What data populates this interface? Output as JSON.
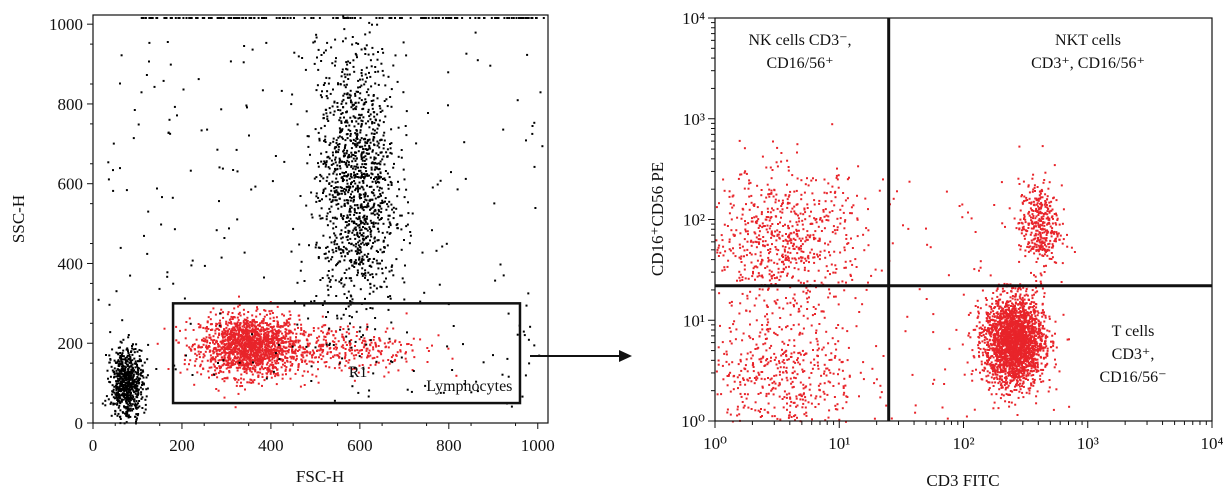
{
  "chart_data": [
    {
      "type": "scatter",
      "xlabel": "FSC-H",
      "ylabel": "SSC-H",
      "xlim": [
        0,
        1023
      ],
      "ylim": [
        0,
        1023
      ],
      "x_ticks": [
        "0",
        "200",
        "400",
        "600",
        "800",
        "1000"
      ],
      "y_ticks": [
        "0",
        "200",
        "400",
        "600",
        "800",
        "1000"
      ],
      "gate": {
        "name": "R1",
        "label": "Lymphocytes",
        "x_range": [
          180,
          960
        ],
        "y_range": [
          50,
          300
        ]
      },
      "clusters": [
        {
          "id": "lymphocytes",
          "color": "#e8242a",
          "center": [
            350,
            195
          ],
          "spread": [
            55,
            38
          ],
          "count": 1700
        },
        {
          "id": "monocytes-gated",
          "color": "#e8242a",
          "center": [
            560,
            190
          ],
          "spread": [
            90,
            32
          ],
          "count": 320
        },
        {
          "id": "granulocytes",
          "color": "#000000",
          "center": [
            590,
            600
          ],
          "spread": [
            45,
            170
          ],
          "count": 1300
        },
        {
          "id": "debris",
          "color": "#000000",
          "center": [
            75,
            100
          ],
          "spread": [
            18,
            45
          ],
          "count": 650
        }
      ]
    },
    {
      "type": "scatter",
      "xlabel": "CD3 FITC",
      "ylabel": "CD16⁺CD56 PE",
      "xscale": "log",
      "yscale": "log",
      "xlim": [
        1,
        10000
      ],
      "ylim": [
        1,
        10000
      ],
      "x_ticks": [
        "10⁰",
        "10¹",
        "10²",
        "10³",
        "10⁴"
      ],
      "y_ticks": [
        "10⁰",
        "10¹",
        "10²",
        "10³",
        "10⁴"
      ],
      "quadrant_split": {
        "x": 25,
        "y": 22
      },
      "quadrant_labels": {
        "top_left": [
          "NK cells CD3⁻,",
          "CD16/56⁺"
        ],
        "top_right": [
          "NKT cells",
          "CD3⁺, CD16/56⁺"
        ],
        "bottom_right": [
          "T cells",
          "CD3⁺,",
          "CD16/56⁻"
        ]
      },
      "clusters": [
        {
          "id": "nk",
          "color": "#e8242a",
          "center_log": [
            0.55,
            1.8
          ],
          "spread_log": [
            0.32,
            0.35
          ],
          "count": 700
        },
        {
          "id": "t-cells",
          "color": "#e8242a",
          "center_log": [
            2.4,
            0.8
          ],
          "spread_log": [
            0.12,
            0.22
          ],
          "count": 2400
        },
        {
          "id": "nkt",
          "color": "#e8242a",
          "center_log": [
            2.6,
            1.95
          ],
          "spread_log": [
            0.08,
            0.22
          ],
          "count": 380
        },
        {
          "id": "low-left",
          "color": "#e8242a",
          "center_log": [
            0.55,
            0.45
          ],
          "spread_log": [
            0.3,
            0.35
          ],
          "count": 500
        }
      ]
    }
  ],
  "arrow": {
    "from": "left-plot",
    "to": "right-plot"
  },
  "colors": {
    "gated": "#e8242a",
    "ungated": "#000000",
    "axis": "#111111"
  }
}
